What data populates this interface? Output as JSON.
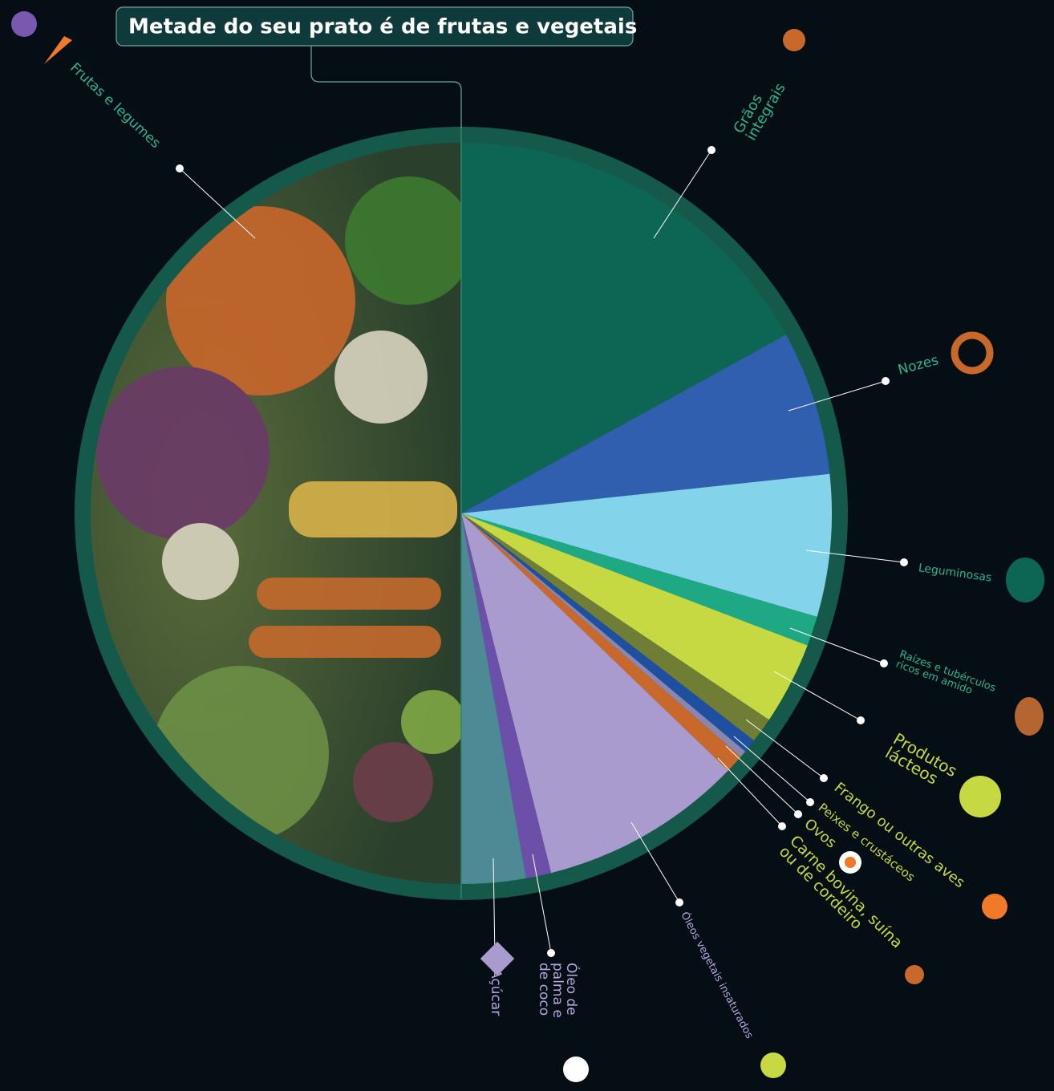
{
  "chart_data": {
    "type": "pie",
    "title": "Metade do seu prato é de frutas e vegetais",
    "categories": [
      "Grãos integrais",
      "Nozes",
      "Leguminosas",
      "Raízes e tubérculos ricos em amido",
      "Produtos lácteos",
      "Frango ou outras aves",
      "Peixes e crustáceos",
      "Ovos",
      "Carne bovina, suína ou de cordeiro",
      "Óleos vegetais insaturados",
      "Óleo de palma e de coco",
      "Açúcar",
      "Frutas e legumes"
    ],
    "values": [
      17,
      6.3,
      6.2,
      1.3,
      3.6,
      1.1,
      0.6,
      0.3,
      0.8,
      8.9,
      1.1,
      2.8,
      50
    ],
    "colors": [
      "#0d6653",
      "#2f5fae",
      "#83d3ea",
      "#1fa884",
      "#c6d943",
      "#6f7d35",
      "#1f4fa0",
      "#8a86b0",
      "#c8692b",
      "#a99bcd",
      "#6c4fa8",
      "#4d8a96",
      "#2a4a35"
    ]
  }
}
